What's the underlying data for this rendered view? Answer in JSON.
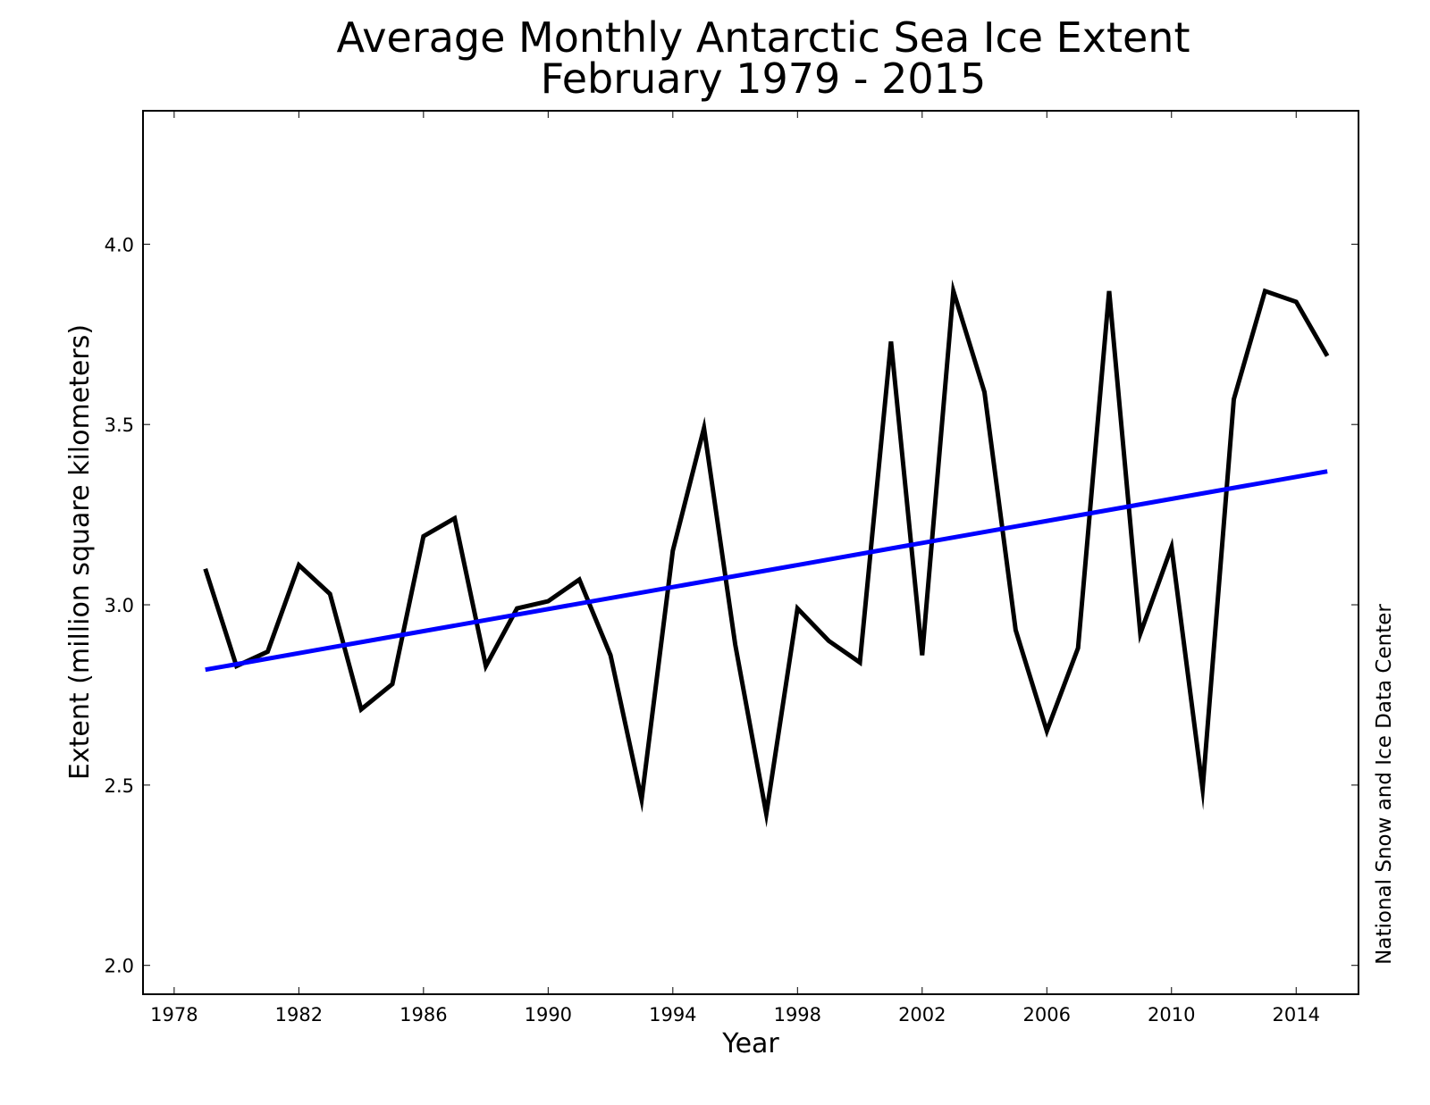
{
  "chart_data": {
    "type": "line",
    "title": "Average Monthly Antarctic Sea Ice Extent",
    "subtitle": "February 1979 - 2015",
    "xlabel": "Year",
    "ylabel": "Extent (million square kilometers)",
    "credit": "National Snow and Ice Data Center",
    "xlim": [
      1977,
      2016
    ],
    "ylim": [
      1.92,
      4.37
    ],
    "xticks": [
      1978,
      1982,
      1986,
      1990,
      1994,
      1998,
      2002,
      2006,
      2010,
      2014
    ],
    "xtick_labels": [
      "1978",
      "1982",
      "1986",
      "1990",
      "1994",
      "1998",
      "2002",
      "2006",
      "2010",
      "2014"
    ],
    "yticks": [
      2.0,
      2.5,
      3.0,
      3.5,
      4.0
    ],
    "ytick_labels": [
      "2.0",
      "2.5",
      "3.0",
      "3.5",
      "4.0"
    ],
    "grid": false,
    "legend": "none",
    "x": [
      1979,
      1980,
      1981,
      1982,
      1983,
      1984,
      1985,
      1986,
      1987,
      1988,
      1989,
      1990,
      1991,
      1992,
      1993,
      1994,
      1995,
      1996,
      1997,
      1998,
      1999,
      2000,
      2001,
      2002,
      2003,
      2004,
      2005,
      2006,
      2007,
      2008,
      2009,
      2010,
      2011,
      2012,
      2013,
      2014,
      2015
    ],
    "series": [
      {
        "name": "Extent",
        "color": "#000000",
        "values": [
          3.1,
          2.83,
          2.87,
          3.11,
          3.03,
          2.71,
          2.78,
          3.19,
          3.24,
          2.83,
          2.99,
          3.01,
          3.07,
          2.86,
          2.46,
          3.15,
          3.49,
          2.89,
          2.42,
          2.99,
          2.9,
          2.84,
          3.73,
          2.86,
          3.87,
          3.59,
          2.93,
          2.65,
          2.88,
          3.87,
          2.92,
          3.16,
          2.49,
          3.57,
          3.87,
          3.84,
          3.69
        ]
      },
      {
        "name": "Linear trend",
        "color": "#0000ff",
        "x": [
          1979,
          2015
        ],
        "values": [
          2.82,
          3.37
        ]
      }
    ]
  }
}
